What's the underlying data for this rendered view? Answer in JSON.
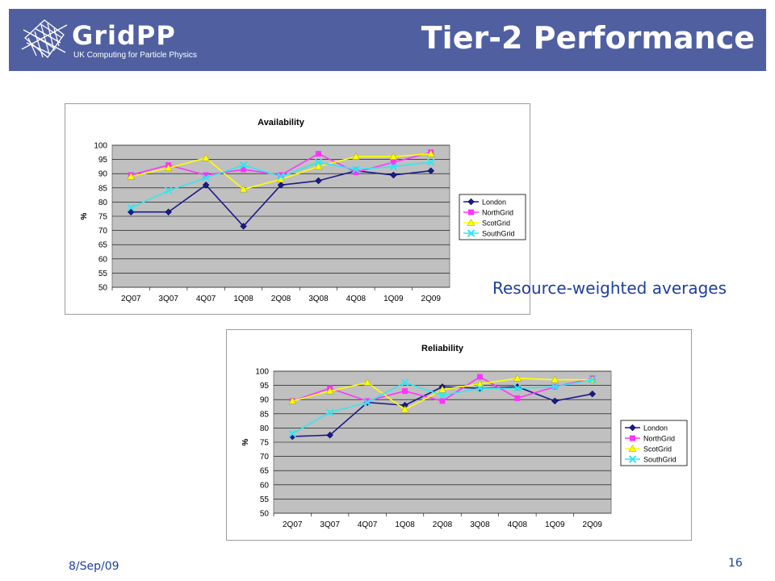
{
  "header": {
    "logo_name": "GridPP",
    "logo_subtitle": "UK Computing for Particle Physics",
    "title": "Tier-2 Performance"
  },
  "annotation": "Resource-weighted averages",
  "footer": {
    "date": "8/Sep/09",
    "page": "16"
  },
  "colors": {
    "header_bg": "#4f5fa0",
    "plot_bg": "#c0c0c0",
    "London": "#1a1a8c",
    "NorthGrid": "#ff33ff",
    "ScotGrid": "#ffff00",
    "SouthGrid": "#33e6f0"
  },
  "chart_data": [
    {
      "type": "line",
      "title": "Availability",
      "ylabel": "%",
      "ylim": [
        50,
        100
      ],
      "yticks": [
        "50",
        "55",
        "60",
        "65",
        "70",
        "75",
        "80",
        "85",
        "90",
        "95",
        "100"
      ],
      "categories": [
        "2Q07",
        "3Q07",
        "4Q07",
        "1Q08",
        "2Q08",
        "3Q08",
        "4Q08",
        "1Q09",
        "2Q09"
      ],
      "grid": true,
      "legend": "right",
      "series": [
        {
          "name": "London",
          "values": [
            76.5,
            76.5,
            86,
            71.5,
            86,
            87.5,
            91,
            89.5,
            91
          ]
        },
        {
          "name": "NorthGrid",
          "values": [
            89.5,
            93,
            89.5,
            91.5,
            89.5,
            97,
            90.5,
            94,
            97.5
          ]
        },
        {
          "name": "ScotGrid",
          "values": [
            89,
            92,
            95.5,
            84.5,
            88,
            92.5,
            96,
            96,
            97
          ]
        },
        {
          "name": "SouthGrid",
          "values": [
            78,
            84,
            88.5,
            93,
            89,
            94,
            91.5,
            92.5,
            94
          ]
        }
      ]
    },
    {
      "type": "line",
      "title": "Reliability",
      "ylabel": "%",
      "ylim": [
        50,
        100
      ],
      "yticks": [
        "50",
        "55",
        "60",
        "65",
        "70",
        "75",
        "80",
        "85",
        "90",
        "95",
        "100"
      ],
      "categories": [
        "2Q07",
        "3Q07",
        "4Q07",
        "1Q08",
        "2Q08",
        "3Q08",
        "4Q08",
        "1Q09",
        "2Q09"
      ],
      "grid": true,
      "legend": "right",
      "series": [
        {
          "name": "London",
          "values": [
            77,
            77.5,
            89,
            88,
            94.5,
            94,
            94.5,
            89.5,
            92
          ]
        },
        {
          "name": "NorthGrid",
          "values": [
            89.5,
            94,
            89.5,
            93,
            89.5,
            98,
            90.5,
            94.5,
            97.5
          ]
        },
        {
          "name": "ScotGrid",
          "values": [
            89.5,
            93,
            96,
            86.5,
            93.5,
            95.5,
            97.5,
            97,
            97
          ]
        },
        {
          "name": "SouthGrid",
          "values": [
            78,
            85.5,
            89,
            96,
            91.5,
            94,
            94,
            94.5,
            97
          ]
        }
      ]
    }
  ]
}
